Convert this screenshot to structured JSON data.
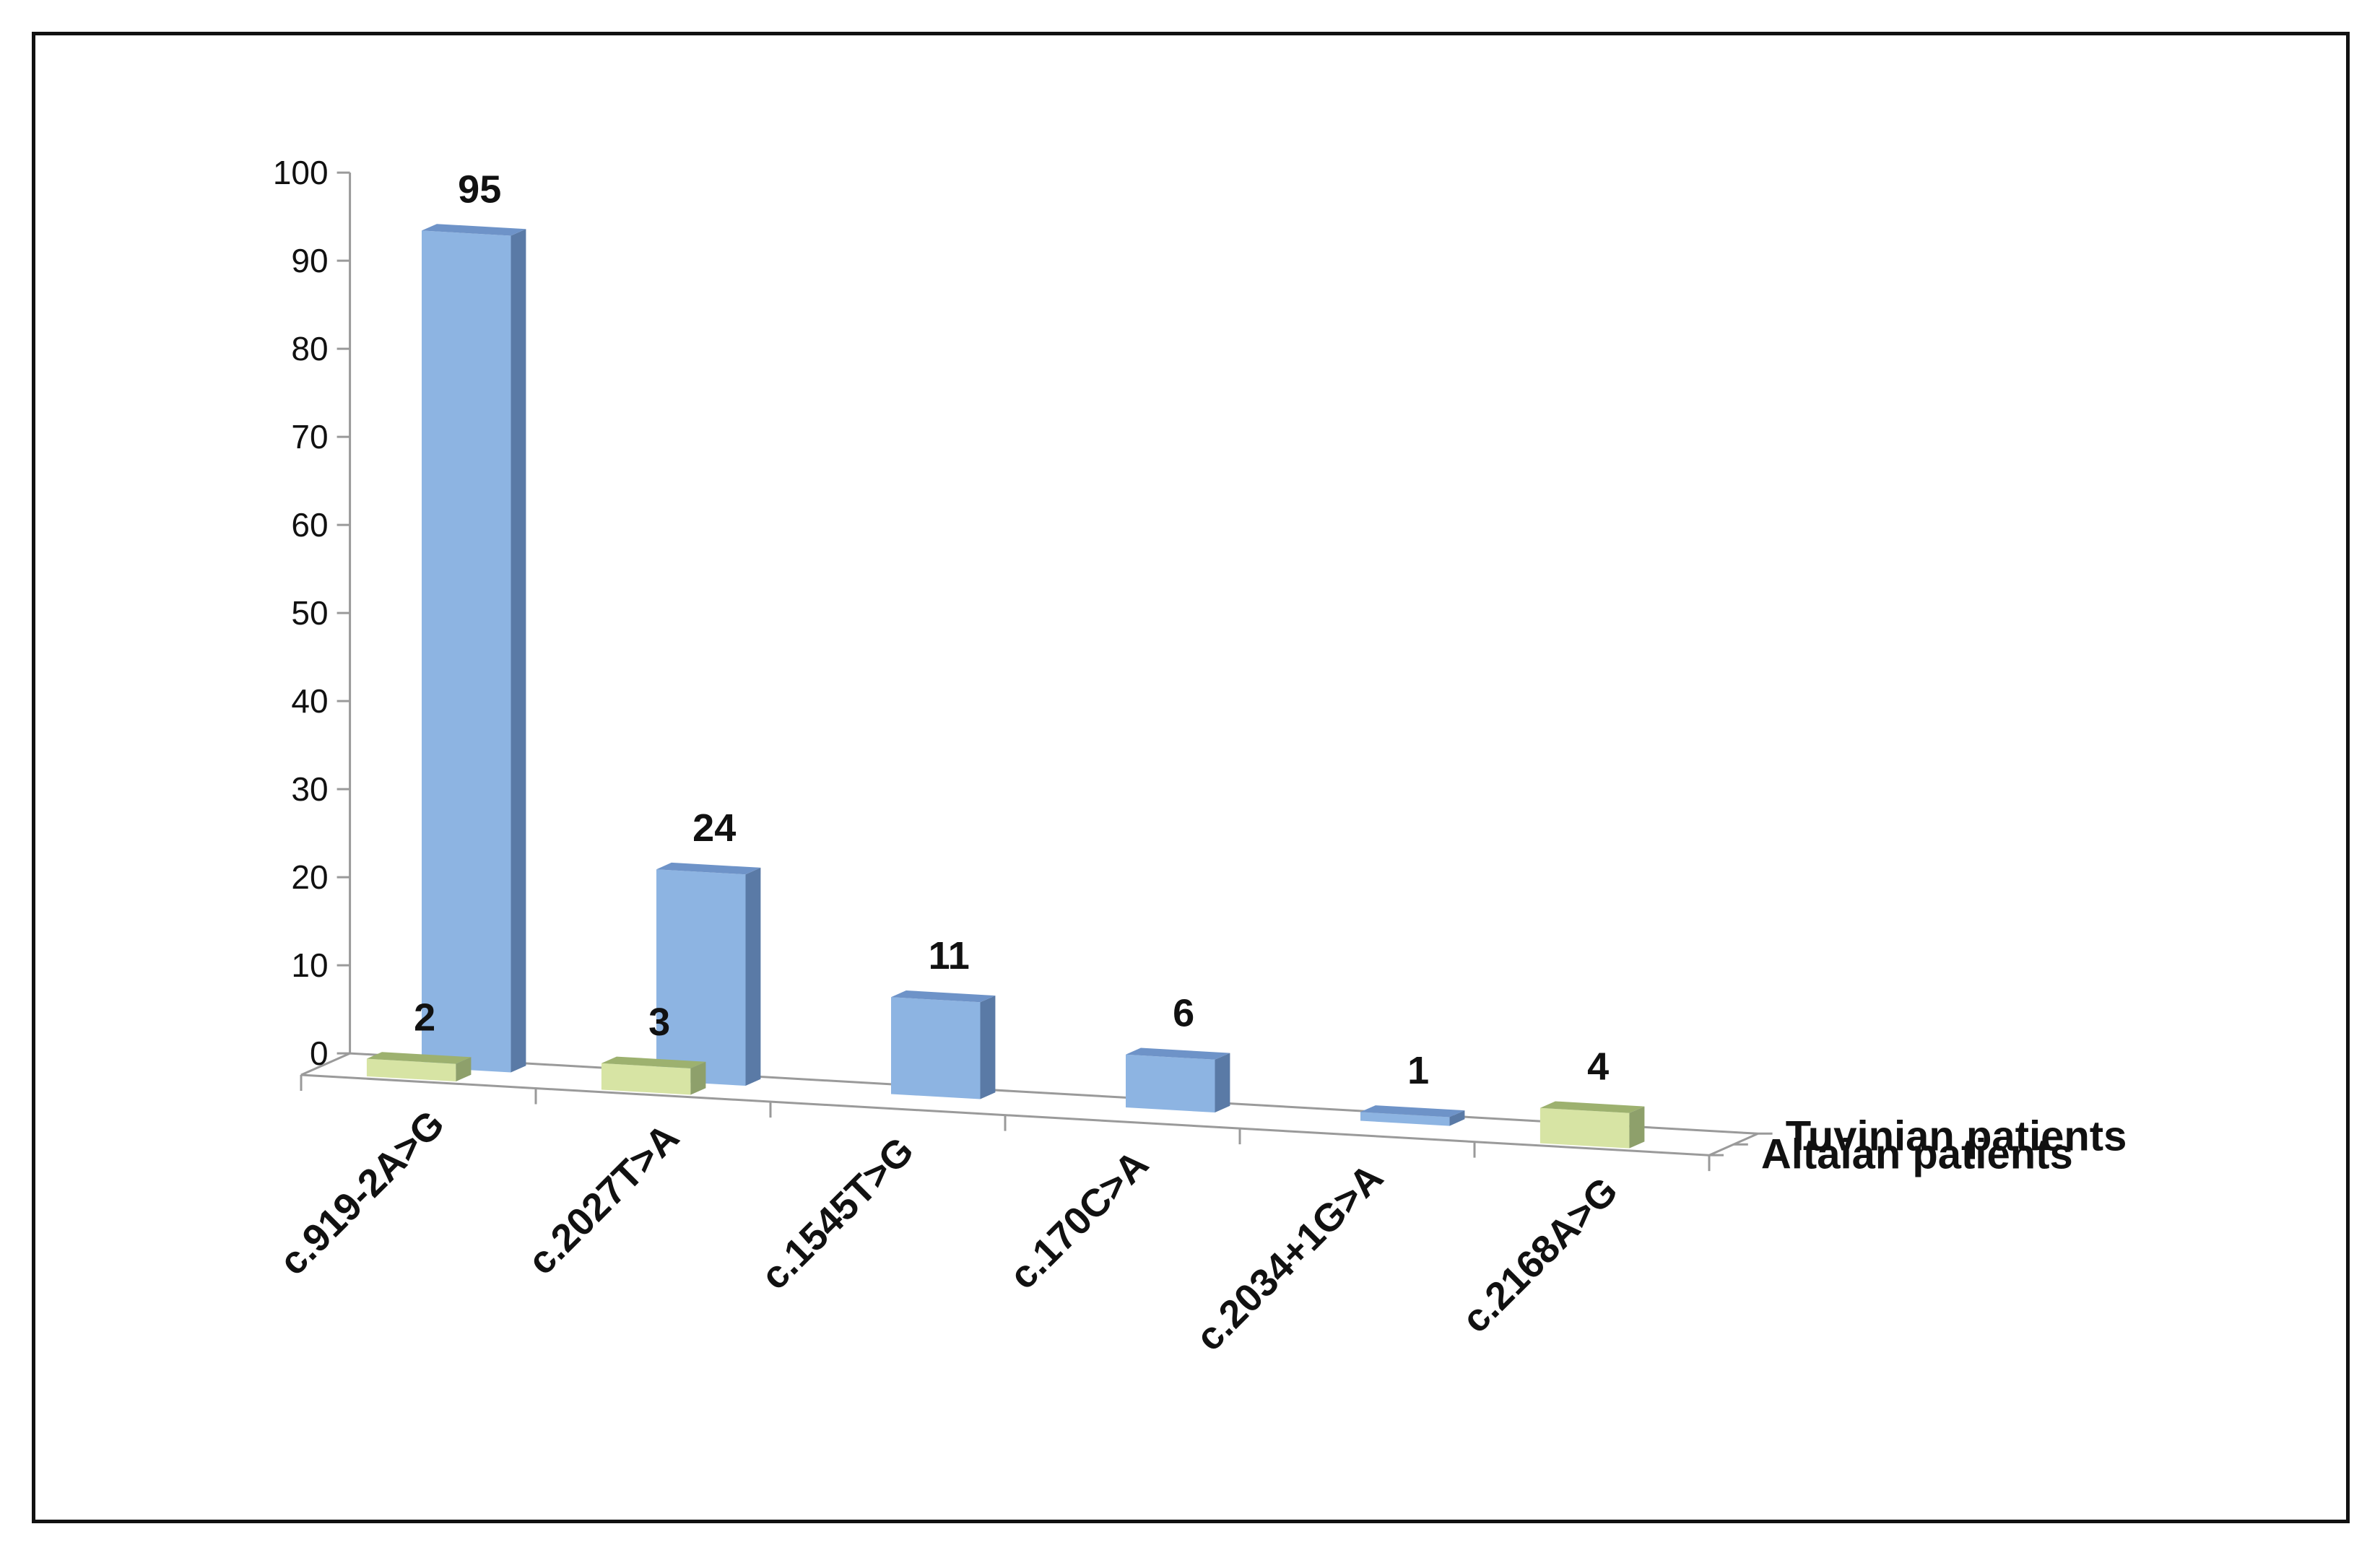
{
  "chart_data": {
    "type": "bar",
    "categories": [
      "c.919-2A>G",
      "c.2027T>A",
      "c.1545T>G",
      "c.170C>A",
      "c.2034+1G>A",
      "c.2168A>G"
    ],
    "series": [
      {
        "name": "Tuvinian patients",
        "values": [
          95,
          24,
          11,
          6,
          1,
          null
        ]
      },
      {
        "name": "Altaian patients",
        "values": [
          2,
          3,
          null,
          null,
          null,
          4
        ]
      }
    ],
    "ylim": [
      0,
      100
    ],
    "yticks": [
      0,
      10,
      20,
      30,
      40,
      50,
      60,
      70,
      80,
      90,
      100
    ],
    "colors": {
      "Tuvinian patients": {
        "front": "#8db4e2",
        "side": "#5a7aa6",
        "top": "#6e93c8"
      },
      "Altaian patients": {
        "front": "#d7e4a4",
        "side": "#8ea06b",
        "top": "#9db16f"
      }
    }
  }
}
